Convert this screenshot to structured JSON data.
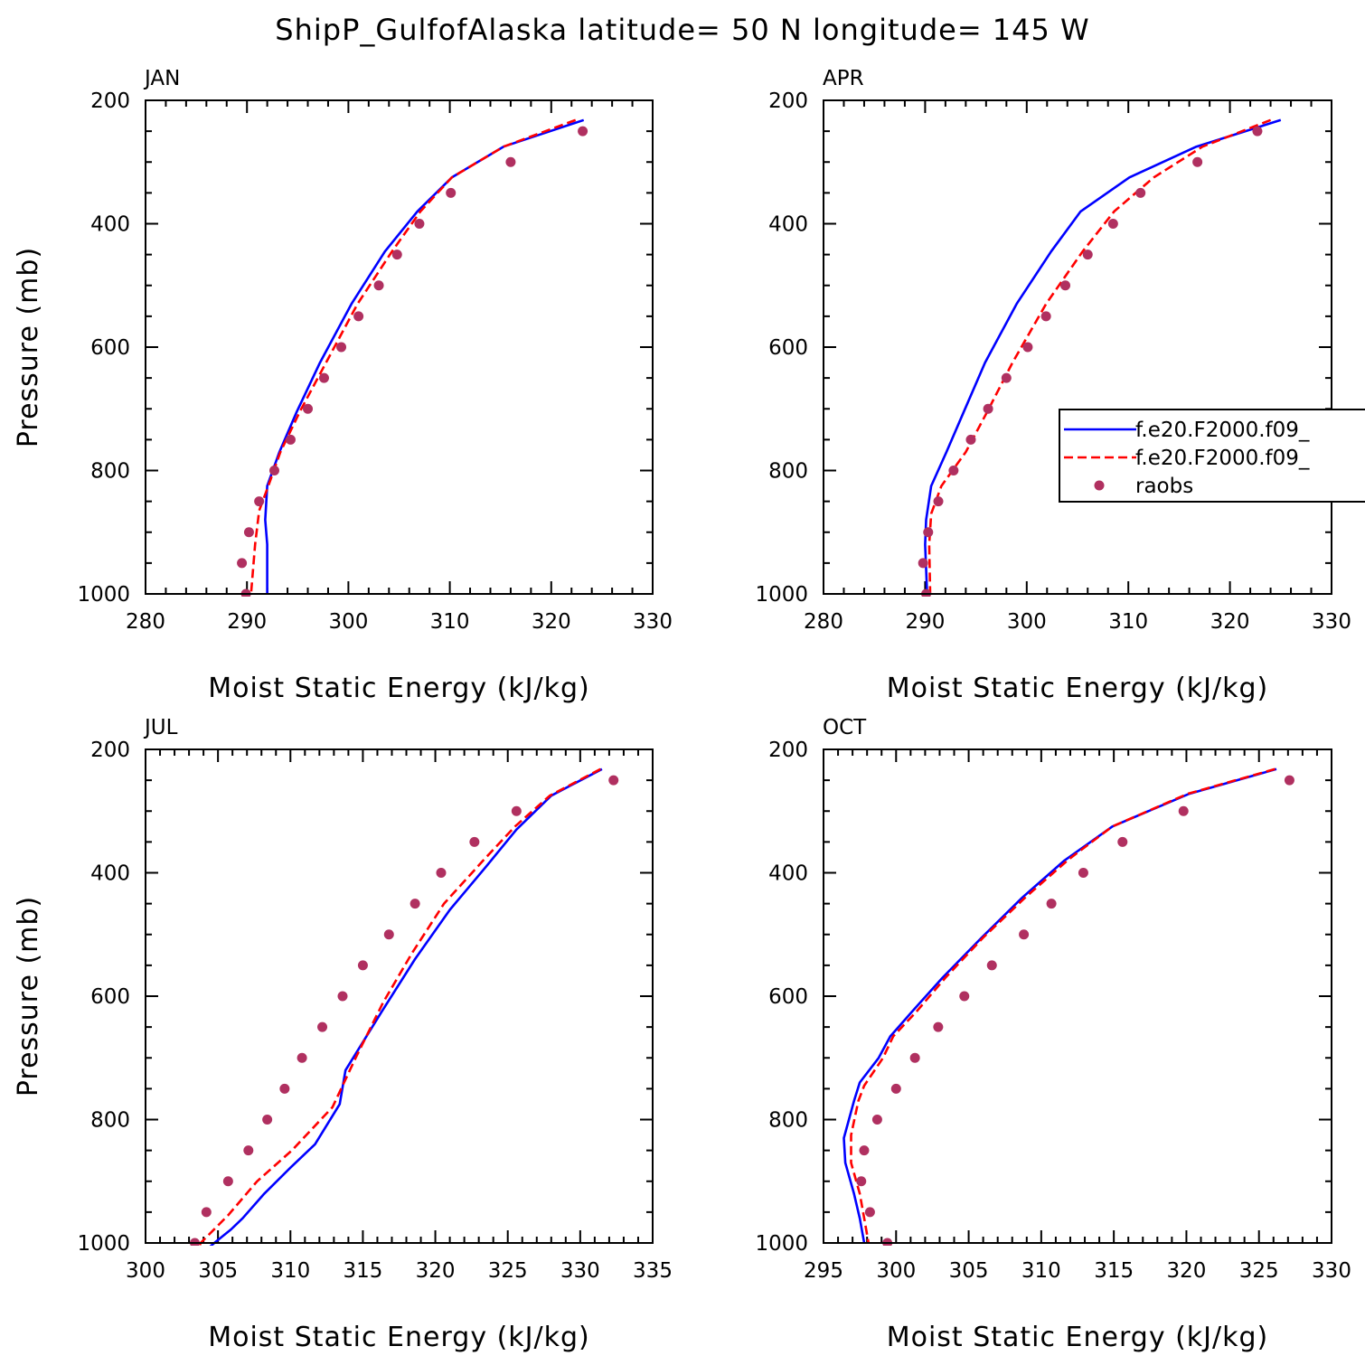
{
  "figure": {
    "title": "ShipP_GulfofAlaska  latitude= 50 N longitude= 145 W"
  },
  "legend": {
    "items": [
      {
        "label": "f.e20.F2000.f09_",
        "color": "#0000ff",
        "style": "solid"
      },
      {
        "label": "f.e20.F2000.f09_",
        "color": "#ff0000",
        "style": "dashed"
      },
      {
        "label": "raobs",
        "color": "#b03060",
        "style": "dots"
      }
    ]
  },
  "chart_data": [
    {
      "type": "line",
      "panel": "JAN",
      "xlabel": "Moist Static Energy (kJ/kg)",
      "ylabel": "Pressure (mb)",
      "xlim": [
        280,
        330
      ],
      "ylim": [
        200,
        1000
      ],
      "y_inverted": true,
      "xticks": [
        280,
        290,
        300,
        310,
        320,
        330
      ],
      "yticks": [
        200,
        400,
        600,
        800,
        1000
      ],
      "series": [
        {
          "name": "f.e20.F2000.f09_",
          "color": "#0000ff",
          "style": "solid",
          "points": [
            [
              323.2,
              232
            ],
            [
              315.3,
              275
            ],
            [
              310.2,
              325
            ],
            [
              306.8,
              380
            ],
            [
              303.6,
              445
            ],
            [
              300.3,
              530
            ],
            [
              297.2,
              625
            ],
            [
              294.9,
              705
            ],
            [
              293.2,
              770
            ],
            [
              292.0,
              825
            ],
            [
              291.8,
              880
            ],
            [
              292.0,
              920
            ],
            [
              292.0,
              1000
            ]
          ]
        },
        {
          "name": "f.e20.F2000.f09_",
          "color": "#ff0000",
          "style": "dashed",
          "points": [
            [
              322.4,
              232
            ],
            [
              315.3,
              275
            ],
            [
              310.2,
              325
            ],
            [
              307.1,
              380
            ],
            [
              304.3,
              445
            ],
            [
              300.9,
              530
            ],
            [
              297.8,
              625
            ],
            [
              295.2,
              705
            ],
            [
              293.3,
              770
            ],
            [
              292.1,
              825
            ],
            [
              291.2,
              865
            ],
            [
              290.8,
              920
            ],
            [
              290.4,
              1000
            ]
          ]
        },
        {
          "name": "raobs",
          "color": "#b03060",
          "style": "dots",
          "points": [
            [
              323.1,
              250
            ],
            [
              316.0,
              300
            ],
            [
              310.1,
              350
            ],
            [
              307.0,
              400
            ],
            [
              304.8,
              450
            ],
            [
              303.0,
              500
            ],
            [
              301.0,
              550
            ],
            [
              299.3,
              600
            ],
            [
              297.6,
              650
            ],
            [
              296.0,
              700
            ],
            [
              294.3,
              750
            ],
            [
              292.7,
              800
            ],
            [
              291.2,
              850
            ],
            [
              290.2,
              900
            ],
            [
              289.5,
              950
            ],
            [
              289.9,
              1000
            ]
          ]
        }
      ]
    },
    {
      "type": "line",
      "panel": "APR",
      "xlabel": "Moist Static Energy (kJ/kg)",
      "ylabel": "",
      "xlim": [
        280,
        330
      ],
      "ylim": [
        200,
        1000
      ],
      "y_inverted": true,
      "xticks": [
        280,
        290,
        300,
        310,
        320,
        330
      ],
      "yticks": [
        200,
        400,
        600,
        800,
        1000
      ],
      "series": [
        {
          "name": "f.e20.F2000.f09_",
          "color": "#0000ff",
          "style": "solid",
          "points": [
            [
              325.0,
              232
            ],
            [
              316.7,
              275
            ],
            [
              310.1,
              325
            ],
            [
              305.3,
              380
            ],
            [
              302.4,
              445
            ],
            [
              299.0,
              530
            ],
            [
              295.9,
              625
            ],
            [
              293.8,
              705
            ],
            [
              292.1,
              770
            ],
            [
              290.6,
              825
            ],
            [
              290.1,
              880
            ],
            [
              290.0,
              920
            ],
            [
              290.2,
              1000
            ]
          ]
        },
        {
          "name": "f.e20.F2000.f09_",
          "color": "#ff0000",
          "style": "dashed",
          "points": [
            [
              324.0,
              232
            ],
            [
              317.3,
              275
            ],
            [
              312.5,
              325
            ],
            [
              308.6,
              380
            ],
            [
              305.5,
              445
            ],
            [
              301.9,
              530
            ],
            [
              298.6,
              625
            ],
            [
              296.1,
              705
            ],
            [
              294.0,
              770
            ],
            [
              291.6,
              825
            ],
            [
              290.6,
              870
            ],
            [
              290.4,
              920
            ],
            [
              290.5,
              1000
            ]
          ]
        },
        {
          "name": "raobs",
          "color": "#b03060",
          "style": "dots",
          "points": [
            [
              322.7,
              250
            ],
            [
              316.8,
              300
            ],
            [
              311.2,
              350
            ],
            [
              308.5,
              400
            ],
            [
              306.0,
              450
            ],
            [
              303.8,
              500
            ],
            [
              301.9,
              550
            ],
            [
              300.1,
              600
            ],
            [
              298.0,
              650
            ],
            [
              296.2,
              700
            ],
            [
              294.5,
              750
            ],
            [
              292.8,
              800
            ],
            [
              291.3,
              850
            ],
            [
              290.3,
              900
            ],
            [
              289.8,
              950
            ],
            [
              290.1,
              1000
            ]
          ]
        }
      ]
    },
    {
      "type": "line",
      "panel": "JUL",
      "xlabel": "Moist Static Energy (kJ/kg)",
      "ylabel": "Pressure (mb)",
      "xlim": [
        300,
        335
      ],
      "ylim": [
        200,
        1000
      ],
      "y_inverted": true,
      "xticks": [
        300,
        305,
        310,
        315,
        320,
        325,
        330,
        335
      ],
      "yticks": [
        200,
        400,
        600,
        800,
        1000
      ],
      "series": [
        {
          "name": "f.e20.F2000.f09_",
          "color": "#0000ff",
          "style": "solid",
          "points": [
            [
              331.5,
              232
            ],
            [
              328.0,
              275
            ],
            [
              325.6,
              330
            ],
            [
              323.5,
              390
            ],
            [
              321.0,
              460
            ],
            [
              318.6,
              540
            ],
            [
              316.3,
              625
            ],
            [
              313.8,
              720
            ],
            [
              313.4,
              775
            ],
            [
              311.7,
              840
            ],
            [
              310.0,
              878
            ],
            [
              308.2,
              920
            ],
            [
              306.7,
              960
            ],
            [
              305.9,
              978
            ],
            [
              304.9,
              997
            ],
            [
              304.0,
              1015
            ]
          ]
        },
        {
          "name": "f.e20.F2000.f09_",
          "color": "#ff0000",
          "style": "dashed",
          "points": [
            [
              331.4,
              232
            ],
            [
              327.9,
              275
            ],
            [
              325.5,
              325
            ],
            [
              323.3,
              380
            ],
            [
              320.6,
              450
            ],
            [
              318.4,
              530
            ],
            [
              316.4,
              610
            ],
            [
              314.5,
              700
            ],
            [
              312.9,
              780
            ],
            [
              310.1,
              850
            ],
            [
              307.7,
              900
            ],
            [
              305.7,
              955
            ],
            [
              303.8,
              1000
            ],
            [
              303.6,
              1015
            ]
          ]
        },
        {
          "name": "raobs",
          "color": "#b03060",
          "style": "dots",
          "points": [
            [
              332.3,
              250
            ],
            [
              325.6,
              300
            ],
            [
              322.7,
              350
            ],
            [
              320.4,
              400
            ],
            [
              318.6,
              450
            ],
            [
              316.8,
              500
            ],
            [
              315.0,
              550
            ],
            [
              313.6,
              600
            ],
            [
              312.2,
              650
            ],
            [
              310.8,
              700
            ],
            [
              309.6,
              750
            ],
            [
              308.4,
              800
            ],
            [
              307.1,
              850
            ],
            [
              305.7,
              900
            ],
            [
              304.2,
              950
            ],
            [
              303.4,
              1000
            ]
          ]
        }
      ]
    },
    {
      "type": "line",
      "panel": "OCT",
      "xlabel": "Moist Static Energy (kJ/kg)",
      "ylabel": "",
      "xlim": [
        295,
        330
      ],
      "ylim": [
        200,
        1000
      ],
      "y_inverted": true,
      "xticks": [
        295,
        300,
        305,
        310,
        315,
        320,
        325,
        330
      ],
      "yticks": [
        200,
        400,
        600,
        800,
        1000
      ],
      "series": [
        {
          "name": "f.e20.F2000.f09_",
          "color": "#0000ff",
          "style": "solid",
          "points": [
            [
              326.2,
              232
            ],
            [
              320.2,
              272
            ],
            [
              314.9,
              325
            ],
            [
              311.6,
              380
            ],
            [
              308.7,
              440
            ],
            [
              305.9,
              505
            ],
            [
              303.2,
              570
            ],
            [
              301.1,
              625
            ],
            [
              299.6,
              665
            ],
            [
              298.8,
              700
            ],
            [
              297.5,
              740
            ],
            [
              297.1,
              770
            ],
            [
              296.4,
              830
            ],
            [
              296.5,
              870
            ],
            [
              297.1,
              920
            ],
            [
              297.5,
              960
            ],
            [
              297.8,
              1000
            ]
          ]
        },
        {
          "name": "f.e20.F2000.f09_",
          "color": "#ff0000",
          "style": "dashed",
          "points": [
            [
              326.1,
              232
            ],
            [
              320.1,
              272
            ],
            [
              314.9,
              325
            ],
            [
              311.9,
              378
            ],
            [
              308.9,
              440
            ],
            [
              306.0,
              505
            ],
            [
              303.4,
              570
            ],
            [
              301.4,
              625
            ],
            [
              299.8,
              665
            ],
            [
              299.1,
              700
            ],
            [
              297.8,
              745
            ],
            [
              297.4,
              770
            ],
            [
              296.9,
              825
            ],
            [
              296.9,
              870
            ],
            [
              297.5,
              920
            ],
            [
              297.8,
              960
            ],
            [
              298.1,
              1000
            ]
          ]
        },
        {
          "name": "raobs",
          "color": "#b03060",
          "style": "dots",
          "points": [
            [
              327.1,
              250
            ],
            [
              319.8,
              300
            ],
            [
              315.6,
              350
            ],
            [
              312.9,
              400
            ],
            [
              310.7,
              450
            ],
            [
              308.8,
              500
            ],
            [
              306.6,
              550
            ],
            [
              304.7,
              600
            ],
            [
              302.9,
              650
            ],
            [
              301.3,
              700
            ],
            [
              300.0,
              750
            ],
            [
              298.7,
              800
            ],
            [
              297.8,
              850
            ],
            [
              297.6,
              900
            ],
            [
              298.2,
              950
            ],
            [
              299.4,
              1000
            ]
          ]
        }
      ]
    }
  ]
}
